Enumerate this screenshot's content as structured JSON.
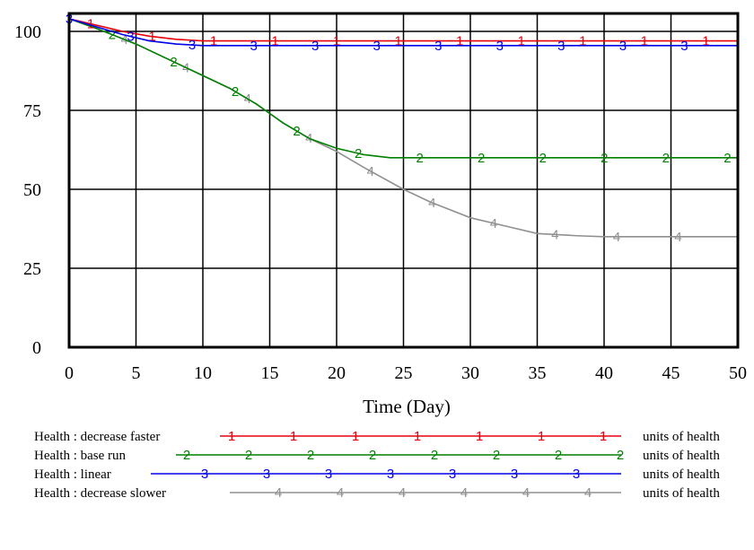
{
  "chart_data": {
    "type": "line",
    "xlabel": "Time (Day)",
    "xlim": [
      0,
      50
    ],
    "ylim": [
      0,
      100
    ],
    "xticks": [
      "0",
      "5",
      "10",
      "15",
      "20",
      "25",
      "30",
      "35",
      "40",
      "45",
      "50"
    ],
    "yticks": [
      "0",
      "25",
      "50",
      "75",
      "100"
    ],
    "grid": true,
    "legend_position": "bottom",
    "series": [
      {
        "name": "Health : decrease faster",
        "marker": "1",
        "units": "units of health",
        "color": "#e8000b",
        "x": [
          0,
          2,
          4,
          6,
          8,
          10,
          15,
          20,
          30,
          40,
          50
        ],
        "y": [
          104,
          102,
          100,
          98.5,
          97.5,
          97,
          97,
          97,
          97,
          97,
          97
        ]
      },
      {
        "name": "Health : base run",
        "marker": "2",
        "units": "units of health",
        "color": "#008000",
        "x": [
          0,
          2,
          5,
          8,
          10,
          12,
          14,
          15,
          16,
          18,
          20,
          21,
          22,
          23,
          24,
          25,
          30,
          40,
          50
        ],
        "y": [
          104,
          101,
          96,
          90,
          86,
          82,
          77,
          74,
          71,
          66,
          63,
          62,
          61,
          60.5,
          60,
          60,
          60,
          60,
          60
        ]
      },
      {
        "name": "Health : linear",
        "marker": "3",
        "units": "units of health",
        "color": "#0000e6",
        "x": [
          0,
          2,
          4,
          6,
          8,
          10,
          20,
          30,
          40,
          50
        ],
        "y": [
          104,
          101.5,
          99,
          97,
          96,
          95.5,
          95.5,
          95.5,
          95.5,
          95.5
        ]
      },
      {
        "name": "Health : decrease slower",
        "marker": "4",
        "units": "units of health",
        "color": "#909090",
        "x": [
          0,
          2,
          5,
          8,
          10,
          12,
          14,
          15,
          16,
          18,
          20,
          22,
          25,
          27,
          30,
          33,
          35,
          38,
          40,
          45,
          50
        ],
        "y": [
          104,
          101,
          96,
          90,
          86,
          82,
          77,
          74,
          71,
          66,
          62,
          57,
          50,
          46,
          41,
          38,
          36,
          35.3,
          35,
          35,
          35
        ]
      }
    ]
  }
}
